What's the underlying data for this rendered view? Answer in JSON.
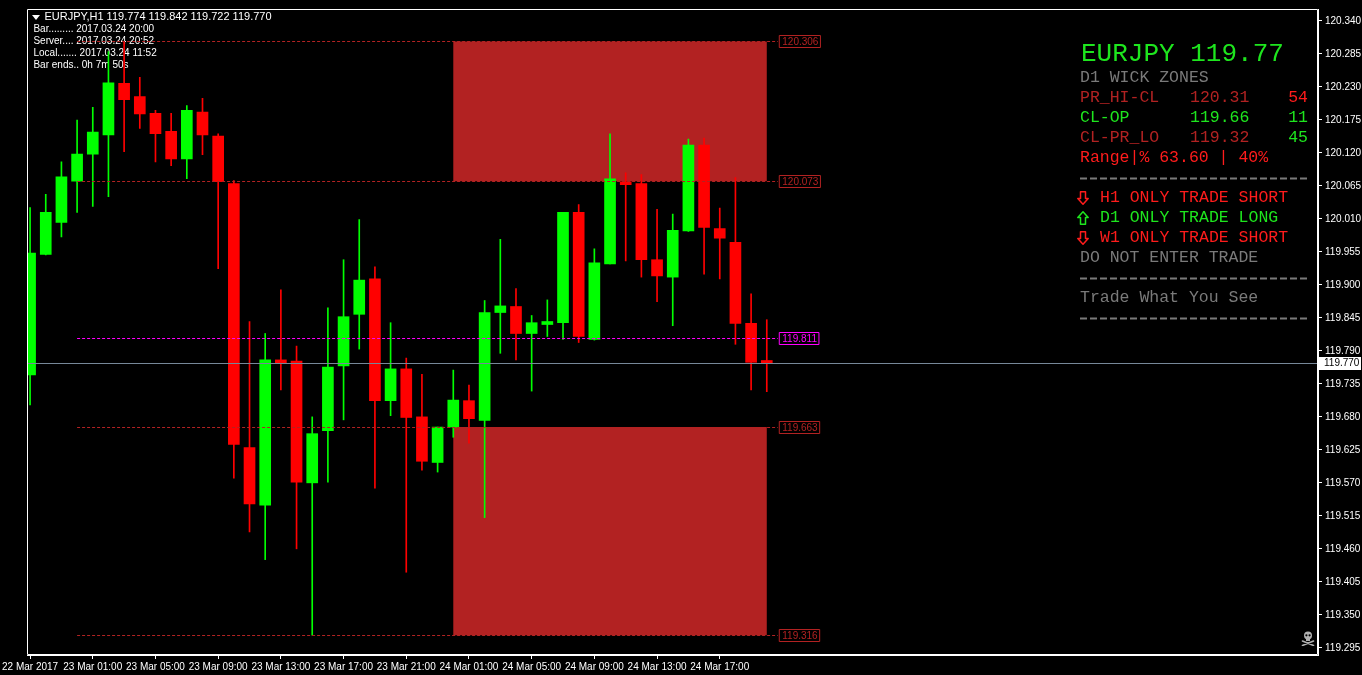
{
  "chart_data": {
    "type": "candlestick",
    "title": "EURJPY,H1 119.774 119.842 119.722 119.770",
    "x": [
      "2017-03-22T21:00",
      "2017-03-22T22:00",
      "2017-03-22T23:00",
      "2017-03-23T00:00",
      "2017-03-23T01:00",
      "2017-03-23T02:00",
      "2017-03-23T03:00",
      "2017-03-23T04:00",
      "2017-03-23T05:00",
      "2017-03-23T06:00",
      "2017-03-23T07:00",
      "2017-03-23T08:00",
      "2017-03-23T09:00",
      "2017-03-23T10:00",
      "2017-03-23T11:00",
      "2017-03-23T12:00",
      "2017-03-23T13:00",
      "2017-03-23T14:00",
      "2017-03-23T15:00",
      "2017-03-23T16:00",
      "2017-03-23T17:00",
      "2017-03-23T18:00",
      "2017-03-23T19:00",
      "2017-03-23T20:00",
      "2017-03-23T21:00",
      "2017-03-23T22:00",
      "2017-03-23T23:00",
      "2017-03-24T00:00",
      "2017-03-24T01:00",
      "2017-03-24T02:00",
      "2017-03-24T03:00",
      "2017-03-24T04:00",
      "2017-03-24T05:00",
      "2017-03-24T06:00",
      "2017-03-24T07:00",
      "2017-03-24T08:00",
      "2017-03-24T09:00",
      "2017-03-24T10:00",
      "2017-03-24T11:00",
      "2017-03-24T12:00",
      "2017-03-24T13:00",
      "2017-03-24T14:00",
      "2017-03-24T15:00",
      "2017-03-24T16:00",
      "2017-03-24T17:00",
      "2017-03-24T18:00",
      "2017-03-24T19:00",
      "2017-03-24T20:00"
    ],
    "ohlc": [
      [
        119.75,
        120.029,
        119.7,
        119.953
      ],
      [
        119.951,
        120.051,
        119.95,
        120.021
      ],
      [
        120.004,
        120.105,
        119.98,
        120.08
      ],
      [
        120.073,
        120.175,
        120.021,
        120.118
      ],
      [
        120.118,
        120.196,
        120.031,
        120.155
      ],
      [
        120.15,
        120.289,
        120.047,
        120.237
      ],
      [
        120.236,
        120.306,
        120.122,
        120.209
      ],
      [
        120.214,
        120.246,
        120.161,
        120.185
      ],
      [
        120.186,
        120.191,
        120.105,
        120.152
      ],
      [
        120.156,
        120.186,
        120.099,
        120.11
      ],
      [
        120.11,
        120.199,
        120.077,
        120.191
      ],
      [
        120.188,
        120.211,
        120.117,
        120.15
      ],
      [
        120.148,
        120.152,
        119.927,
        120.072
      ],
      [
        120.069,
        120.074,
        119.578,
        119.634
      ],
      [
        119.629,
        119.839,
        119.488,
        119.535
      ],
      [
        119.533,
        119.819,
        119.442,
        119.775
      ],
      [
        119.775,
        119.892,
        119.725,
        119.77
      ],
      [
        119.773,
        119.798,
        119.46,
        119.571
      ],
      [
        119.57,
        119.68,
        119.316,
        119.652
      ],
      [
        119.657,
        119.862,
        119.571,
        119.763
      ],
      [
        119.765,
        119.942,
        119.675,
        119.847
      ],
      [
        119.851,
        120.009,
        119.793,
        119.908
      ],
      [
        119.91,
        119.93,
        119.561,
        119.707
      ],
      [
        119.707,
        119.837,
        119.682,
        119.76
      ],
      [
        119.76,
        119.778,
        119.421,
        119.679
      ],
      [
        119.68,
        119.751,
        119.591,
        119.606
      ],
      [
        119.604,
        119.663,
        119.588,
        119.663
      ],
      [
        119.663,
        119.758,
        119.646,
        119.708
      ],
      [
        119.707,
        119.733,
        119.636,
        119.677
      ],
      [
        119.674,
        119.874,
        119.512,
        119.854
      ],
      [
        119.854,
        119.976,
        119.786,
        119.865
      ],
      [
        119.864,
        119.894,
        119.775,
        119.819
      ],
      [
        119.819,
        119.849,
        119.723,
        119.837
      ],
      [
        119.834,
        119.875,
        119.814,
        119.839
      ],
      [
        119.837,
        120.021,
        119.809,
        120.021
      ],
      [
        120.021,
        120.034,
        119.804,
        119.814
      ],
      [
        119.809,
        119.96,
        119.808,
        119.937
      ],
      [
        119.935,
        120.152,
        119.935,
        120.077
      ],
      [
        120.072,
        120.087,
        119.94,
        120.067
      ],
      [
        120.069,
        120.084,
        119.913,
        119.942
      ],
      [
        119.942,
        120.026,
        119.872,
        119.915
      ],
      [
        119.913,
        120.018,
        119.832,
        119.991
      ],
      [
        119.99,
        120.143,
        119.989,
        120.133
      ],
      [
        120.133,
        120.145,
        119.918,
        119.996
      ],
      [
        119.994,
        120.028,
        119.91,
        119.978
      ],
      [
        119.971,
        120.079,
        119.801,
        119.836
      ],
      [
        119.836,
        119.885,
        119.725,
        119.771
      ],
      [
        119.774,
        119.842,
        119.722,
        119.77
      ]
    ],
    "colors": [
      "#00ff00",
      "#00ff00",
      "#00ff00",
      "#00ff00",
      "#00ff00",
      "#00ff00",
      "#ff0000",
      "#ff0000",
      "#ff0000",
      "#ff0000",
      "#00ff00",
      "#ff0000",
      "#ff0000",
      "#ff0000",
      "#ff0000",
      "#00ff00",
      "#ff0000",
      "#ff0000",
      "#00ff00",
      "#00ff00",
      "#00ff00",
      "#00ff00",
      "#ff0000",
      "#00ff00",
      "#ff0000",
      "#ff0000",
      "#00ff00",
      "#00ff00",
      "#ff0000",
      "#00ff00",
      "#00ff00",
      "#ff0000",
      "#00ff00",
      "#00ff00",
      "#00ff00",
      "#ff0000",
      "#00ff00",
      "#00ff00",
      "#ff0000",
      "#ff0000",
      "#ff0000",
      "#00ff00",
      "#00ff00",
      "#ff0000",
      "#ff0000",
      "#ff0000",
      "#ff0000",
      "#ff0000"
    ],
    "xlim": [
      "2017-03-22T20:50",
      "2017-03-26T07:10"
    ],
    "xticks": [
      {
        "value": "2017-03-22T21:00",
        "label": "22 Mar 2017"
      },
      {
        "value": "2017-03-23T01:00",
        "label": "23 Mar 01:00"
      },
      {
        "value": "2017-03-23T05:00",
        "label": "23 Mar 05:00"
      },
      {
        "value": "2017-03-23T09:00",
        "label": "23 Mar 09:00"
      },
      {
        "value": "2017-03-23T13:00",
        "label": "23 Mar 13:00"
      },
      {
        "value": "2017-03-23T17:00",
        "label": "23 Mar 17:00"
      },
      {
        "value": "2017-03-23T21:00",
        "label": "23 Mar 21:00"
      },
      {
        "value": "2017-03-24T01:00",
        "label": "24 Mar 01:00"
      },
      {
        "value": "2017-03-24T05:00",
        "label": "24 Mar 05:00"
      },
      {
        "value": "2017-03-24T09:00",
        "label": "24 Mar 09:00"
      },
      {
        "value": "2017-03-24T13:00",
        "label": "24 Mar 13:00"
      },
      {
        "value": "2017-03-24T17:00",
        "label": "24 Mar 17:00"
      }
    ],
    "ylim": [
      119.283,
      120.36
    ],
    "yticks": [
      {
        "value": 120.34,
        "label": "120.340"
      },
      120.285,
      {
        "value": 120.23,
        "label": "120.230"
      },
      120.175,
      {
        "value": 120.12,
        "label": "120.120"
      },
      120.065,
      {
        "value": 120.01,
        "label": "120.010"
      },
      119.955,
      {
        "value": 119.9,
        "label": "119.900"
      },
      119.845,
      {
        "value": 119.79,
        "label": "119.790"
      },
      119.735,
      {
        "value": 119.68,
        "label": "119.680"
      },
      119.625,
      {
        "value": 119.57,
        "label": "119.570"
      },
      119.515,
      {
        "value": 119.46,
        "label": "119.460"
      },
      119.405,
      {
        "value": 119.35,
        "label": "119.350"
      },
      119.295
    ],
    "bands": [
      {
        "axis": "y",
        "from": 120.073,
        "to": 120.306,
        "color": "#b22222"
      },
      {
        "axis": "y",
        "from": 119.316,
        "to": 119.663,
        "color": "#b22222"
      }
    ],
    "ref_lines": [
      {
        "axis": "y",
        "value": 120.306,
        "label": "120.306",
        "color": "#b22222",
        "line_style": "dashed"
      },
      {
        "axis": "y",
        "value": 120.073,
        "label": "120.073",
        "color": "#b22222",
        "line_style": "dashed"
      },
      {
        "axis": "y",
        "value": 119.811,
        "label": "119.811",
        "color": "#ff00ff",
        "line_style": "dashed"
      },
      {
        "axis": "y",
        "value": 119.663,
        "label": "119.663",
        "color": "#b22222",
        "line_style": "dashed"
      },
      {
        "axis": "y",
        "value": 119.316,
        "label": "119.316",
        "color": "#b22222",
        "line_style": "dashed"
      },
      {
        "axis": "y",
        "value": 119.77,
        "label": "119.770",
        "color": "#778899",
        "line_style": "solid"
      }
    ],
    "annotations": [
      "Bar......... 2017.03.24 20:00",
      "Server.... 2017.03.24 20:52",
      "Local....... 2017.03.24 11:52",
      "Bar ends.. 0h 7m 50s",
      "EURJPY 119.77",
      "D1 WICK ZONES",
      "PR_HI-CL",
      "120.31",
      "54",
      "CL-OP",
      "119.66",
      "11",
      "CL-PR_LO",
      "119.32",
      "45",
      "Range|% 63.60 | 40%",
      "H1 ONLY TRADE SHORT",
      "D1 ONLY TRADE LONG",
      "W1 ONLY TRADE SHORT",
      "DO NOT ENTER TRADE",
      "Trade What You See"
    ]
  }
}
